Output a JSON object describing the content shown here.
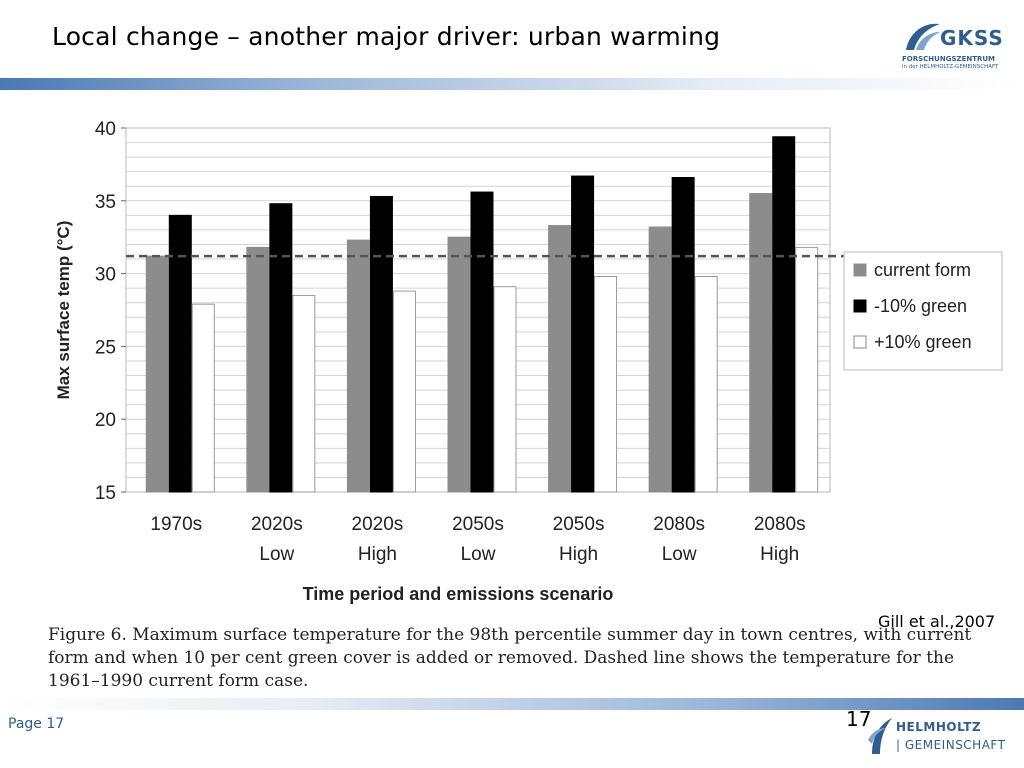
{
  "slide": {
    "title": "Local change – another major driver: urban warming",
    "page_label": "Page 17",
    "page_number": "17",
    "citation": "Gill et al.,2007"
  },
  "logos": {
    "gkss": {
      "word": "GKSS",
      "line1": "FORSCHUNGSZENTRUM",
      "line2": "in der HELMHOLTZ-GEMEINSCHAFT"
    },
    "helmholtz": {
      "line1": "HELMHOLTZ",
      "line2": "| GEMEINSCHAFT"
    }
  },
  "caption": "Figure 6. Maximum surface temperature for the 98th percentile summer day in town centres, with current form and when 10 per cent green cover is added or removed. Dashed line shows the temperature for the 1961–1990 current form case.",
  "colors": {
    "band": "#4a79b4",
    "current_form": "#8c8c8c",
    "minus_green": "#000000",
    "plus_green": "#ffffff",
    "text_blue": "#2f5d8f"
  },
  "chart_data": {
    "type": "bar",
    "xlabel": "Time period and emissions scenario",
    "ylabel": "Max surface temp (°C)",
    "ylim": [
      15,
      40
    ],
    "yticks": [
      15,
      20,
      25,
      30,
      35,
      40
    ],
    "grid": true,
    "legend_position": "right",
    "categories": [
      [
        "1970s"
      ],
      [
        "2020s",
        "Low"
      ],
      [
        "2020s",
        "High"
      ],
      [
        "2050s",
        "Low"
      ],
      [
        "2050s",
        "High"
      ],
      [
        "2080s",
        "Low"
      ],
      [
        "2080s",
        "High"
      ]
    ],
    "series": [
      {
        "name": "current form",
        "color": "#8c8c8c",
        "values": [
          31.2,
          31.8,
          32.3,
          32.5,
          33.3,
          33.2,
          35.5
        ]
      },
      {
        "name": "-10% green",
        "color": "#000000",
        "values": [
          34.0,
          34.8,
          35.3,
          35.6,
          36.7,
          36.6,
          39.4
        ]
      },
      {
        "name": "+10% green",
        "color": "#ffffff",
        "values": [
          27.9,
          28.5,
          28.8,
          29.1,
          29.8,
          29.8,
          31.8
        ]
      }
    ],
    "reference_line": {
      "value": 31.2,
      "style": "dashed"
    }
  }
}
